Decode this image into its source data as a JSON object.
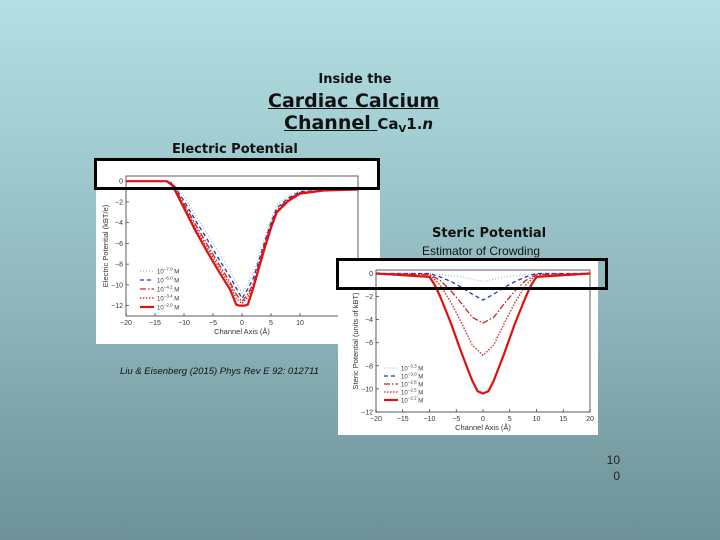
{
  "slide": {
    "title_small": "Inside the",
    "title_line1": "Cardiac Calcium",
    "title_line2": "Channel",
    "channel_name": "Ca",
    "channel_sub": "V",
    "channel_rest": "1.",
    "channel_italic": "n",
    "electric_label": "Electric Potential",
    "steric_label": "Steric Potential",
    "steric_sublabel": "Estimator of Crowding",
    "citation": "Liu & Eisenberg (2015) Phys Rev E 92: 012711",
    "page_line1": "10",
    "page_line2": "0"
  },
  "chart_data": [
    {
      "type": "line",
      "xlabel": "Channel Axis (Å)",
      "ylabel": "Electric Potential (kBT/e)",
      "xlim": [
        -20,
        20
      ],
      "ylim": [
        -13,
        0.5
      ],
      "xticks": [
        -20,
        -15,
        -10,
        -5,
        0,
        5,
        10
      ],
      "yticks": [
        0,
        -2,
        -4,
        -6,
        -8,
        -10,
        -12
      ],
      "tick_labels_x": [
        "−20",
        "−15",
        "−10",
        "−5",
        "0",
        "5",
        "10"
      ],
      "tick_labels_y": [
        "0",
        "−2",
        "−4",
        "−6",
        "−8",
        "−10",
        "−12"
      ],
      "legend_position": "bottom-left",
      "series": [
        {
          "name": "10^-7.0 M",
          "color": "#9aa9d8",
          "dash": "1,2",
          "width": 1,
          "x": [
            -20,
            -13,
            -12,
            -10,
            -8,
            -6,
            -4,
            -2,
            -1,
            0,
            1,
            2,
            3,
            4,
            5,
            6,
            8,
            10,
            14,
            20
          ],
          "y": [
            0,
            0,
            -0.1,
            -1.5,
            -3.3,
            -5.1,
            -6.9,
            -8.7,
            -9.8,
            -10.8,
            -9.9,
            -8.8,
            -7.1,
            -5.3,
            -3.7,
            -2.3,
            -1.4,
            -0.9,
            -0.8,
            -0.7
          ]
        },
        {
          "name": "10^-6.0 M",
          "color": "#1f3aa8",
          "dash": "4,3",
          "width": 1.3,
          "x": [
            -20,
            -13,
            -12,
            -10,
            -8,
            -6,
            -4,
            -2,
            -1,
            0,
            1,
            2,
            3,
            4,
            5,
            6,
            8,
            10,
            14,
            20
          ],
          "y": [
            0,
            0,
            -0.2,
            -1.9,
            -3.8,
            -5.6,
            -7.5,
            -9.3,
            -10.3,
            -11.3,
            -10.4,
            -9.3,
            -7.5,
            -5.7,
            -4.0,
            -2.6,
            -1.6,
            -1.0,
            -0.9,
            -0.8
          ]
        },
        {
          "name": "10^-4.2 M",
          "color": "#cc2020",
          "dash": "6,2,1.5,2",
          "width": 1.3,
          "x": [
            -20,
            -13,
            -12,
            -10,
            -8,
            -6,
            -4,
            -2,
            -1,
            0,
            1,
            2,
            3,
            4,
            5,
            6,
            8,
            10,
            14,
            20
          ],
          "y": [
            0,
            0,
            -0.3,
            -2.2,
            -4.2,
            -6.1,
            -8.0,
            -9.8,
            -10.9,
            -11.6,
            -10.9,
            -9.8,
            -7.8,
            -5.9,
            -4.2,
            -2.8,
            -1.7,
            -1.1,
            -0.9,
            -0.8
          ]
        },
        {
          "name": "10^-3.4 M",
          "color": "#cc2020",
          "dash": "1.5,1.5",
          "width": 1.3,
          "x": [
            -20,
            -13,
            -12,
            -10,
            -8,
            -6,
            -4,
            -2,
            -1,
            0,
            1,
            2,
            3,
            4,
            5,
            6,
            8,
            10,
            14,
            20
          ],
          "y": [
            0,
            0,
            -0.3,
            -2.4,
            -4.5,
            -6.4,
            -8.3,
            -10.1,
            -11.3,
            -11.8,
            -11.2,
            -10.0,
            -8.0,
            -6.1,
            -4.3,
            -2.9,
            -1.8,
            -1.1,
            -0.9,
            -0.8
          ]
        },
        {
          "name": "10^-2.0 M",
          "color": "#e01010",
          "dash": "",
          "width": 2.2,
          "x": [
            -20,
            -13,
            -12,
            -10,
            -8,
            -6,
            -4,
            -2,
            -1,
            -0.5,
            0.5,
            1,
            2,
            3,
            4,
            5,
            6,
            8,
            10,
            14,
            20
          ],
          "y": [
            0,
            0,
            -0.4,
            -2.6,
            -4.8,
            -6.8,
            -8.7,
            -10.5,
            -11.9,
            -12.0,
            -12.0,
            -11.9,
            -10.2,
            -8.2,
            -6.3,
            -4.5,
            -3.0,
            -1.9,
            -1.2,
            -0.9,
            -0.8
          ]
        }
      ]
    },
    {
      "type": "line",
      "xlabel": "Channel Axis (Å)",
      "ylabel": "Steric Potential (units of kBT)",
      "xlim": [
        -20,
        20
      ],
      "ylim": [
        -12,
        0.3
      ],
      "xticks": [
        -20,
        -15,
        -10,
        -5,
        0,
        5,
        10,
        15,
        20
      ],
      "yticks": [
        0,
        -2,
        -4,
        -6,
        -8,
        -10,
        -12
      ],
      "tick_labels_x": [
        "−20",
        "−15",
        "−10",
        "−5",
        "0",
        "5",
        "10",
        "15",
        "20"
      ],
      "tick_labels_y": [
        "0",
        "−2",
        "−4",
        "−6",
        "−8",
        "−10",
        "−12"
      ],
      "legend_position": "bottom-left",
      "series": [
        {
          "name": "10^-3.3 M",
          "color": "#9aa9d8",
          "dash": "1,2",
          "width": 1,
          "x": [
            -20,
            -10,
            -8,
            -6,
            -4,
            -2,
            0,
            2,
            4,
            6,
            8,
            10,
            20
          ],
          "y": [
            0,
            0,
            -0.1,
            -0.2,
            -0.3,
            -0.5,
            -0.7,
            -0.5,
            -0.3,
            -0.2,
            -0.1,
            0,
            0
          ]
        },
        {
          "name": "10^-3.0 M",
          "color": "#1f3aa8",
          "dash": "4,3",
          "width": 1.3,
          "x": [
            -20,
            -10,
            -8,
            -6,
            -4,
            -2,
            0,
            2,
            4,
            6,
            8,
            10,
            20
          ],
          "y": [
            0,
            0,
            -0.3,
            -0.7,
            -1.2,
            -1.8,
            -2.3,
            -1.8,
            -1.2,
            -0.7,
            -0.3,
            0,
            0
          ]
        },
        {
          "name": "10^-2.8 M",
          "color": "#cc2020",
          "dash": "6,2,1.5,2",
          "width": 1.3,
          "x": [
            -20,
            -10,
            -8,
            -6,
            -4,
            -2,
            0,
            2,
            4,
            6,
            8,
            10,
            20
          ],
          "y": [
            0,
            -0.1,
            -0.6,
            -1.5,
            -2.6,
            -3.8,
            -4.3,
            -3.8,
            -2.6,
            -1.5,
            -0.6,
            -0.1,
            0
          ]
        },
        {
          "name": "10^-2.5 M",
          "color": "#cc2020",
          "dash": "1.5,1.5",
          "width": 1.3,
          "x": [
            -20,
            -10,
            -8,
            -6,
            -4,
            -2,
            0,
            2,
            4,
            6,
            8,
            10,
            20
          ],
          "y": [
            0,
            -0.1,
            -1.0,
            -2.5,
            -4.3,
            -6.2,
            -7.1,
            -6.2,
            -4.3,
            -2.5,
            -1.0,
            -0.1,
            0
          ]
        },
        {
          "name": "10^-2.2 M",
          "color": "#e01010",
          "dash": "",
          "width": 2.2,
          "x": [
            -20,
            -10,
            -9,
            -8,
            -6,
            -4,
            -2,
            -1,
            0,
            1,
            2,
            4,
            6,
            8,
            9,
            10,
            20
          ],
          "y": [
            0,
            -0.3,
            -1.0,
            -2.0,
            -4.3,
            -6.9,
            -9.3,
            -10.2,
            -10.4,
            -10.2,
            -9.3,
            -6.9,
            -4.3,
            -2.0,
            -1.0,
            -0.3,
            0
          ]
        }
      ]
    }
  ]
}
